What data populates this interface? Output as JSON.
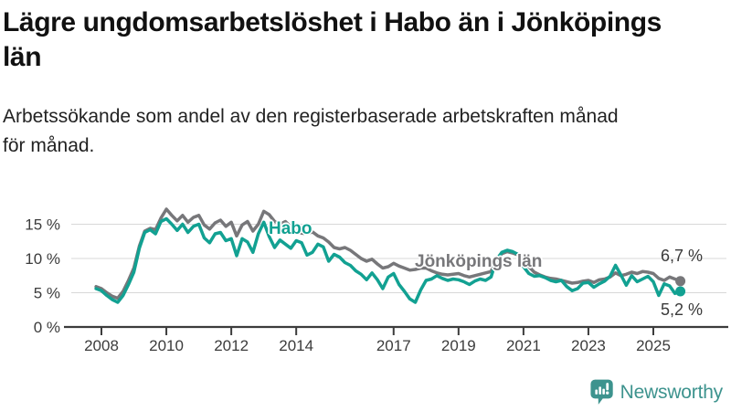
{
  "header": {
    "title_line1": "Lägre ungdomsarbetslöshet i Habo än i Jönköpings",
    "title_line2": "län",
    "subtitle_line1": "Arbetssökande som andel av den registerbaserade arbetskraften månad",
    "subtitle_line2": "för månad."
  },
  "chart_data": {
    "type": "line",
    "title": "Lägre ungdomsarbetslöshet i Habo än i Jönköpings län",
    "subtitle": "Arbetssökande som andel av den registerbaserade arbetskraften månad för månad.",
    "xlabel": "",
    "ylabel": "",
    "x_unit": "year",
    "x0": 2007.8333,
    "dx": 0.16667,
    "xlim": [
      2007.8,
      2026.3
    ],
    "ylim": [
      0,
      18
    ],
    "grid": true,
    "legend_position": "inline-labels",
    "x_ticks": [
      2008,
      2010,
      2012,
      2014,
      2017,
      2019,
      2021,
      2023,
      2025
    ],
    "y_tick_values": [
      0,
      5,
      10,
      15
    ],
    "y_tick_labels": [
      "0 %",
      "5 %",
      "10 %",
      "15 %"
    ],
    "series": [
      {
        "name": "Jönköpings län",
        "color": "#77777a",
        "end_value": 6.7,
        "end_label": "6,7 %",
        "values": [
          5.9,
          5.6,
          5.0,
          4.5,
          4.2,
          5.2,
          6.8,
          8.6,
          11.8,
          14.0,
          14.4,
          14.2,
          15.9,
          17.2,
          16.3,
          15.5,
          16.3,
          15.3,
          16.0,
          16.3,
          14.9,
          14.3,
          15.2,
          15.6,
          14.7,
          15.3,
          13.3,
          14.9,
          15.4,
          14.0,
          15.0,
          16.9,
          16.4,
          15.4,
          15.0,
          15.4,
          14.6,
          14.1,
          13.7,
          13.6,
          13.9,
          13.3,
          13.0,
          12.4,
          11.6,
          11.4,
          11.6,
          11.2,
          10.6,
          10.0,
          9.6,
          9.9,
          9.2,
          8.6,
          8.8,
          9.3,
          8.9,
          8.6,
          8.3,
          8.4,
          8.6,
          8.6,
          8.2,
          7.9,
          7.7,
          7.6,
          7.7,
          7.8,
          7.5,
          7.3,
          7.5,
          7.7,
          7.9,
          8.1,
          10.0,
          10.7,
          11.0,
          10.8,
          10.5,
          9.8,
          8.8,
          8.0,
          7.6,
          7.3,
          7.1,
          7.0,
          6.8,
          6.6,
          6.4,
          6.5,
          6.7,
          6.8,
          6.5,
          6.9,
          7.0,
          7.3,
          7.9,
          7.5,
          7.7,
          8.0,
          7.8,
          8.1,
          8.0,
          7.8,
          7.1,
          6.8,
          7.3,
          7.0,
          6.7
        ]
      },
      {
        "name": "Habo",
        "color": "#12a192",
        "end_value": 5.2,
        "end_label": "5,2 %",
        "values": [
          5.6,
          5.3,
          4.6,
          4.0,
          3.6,
          4.6,
          6.2,
          8.0,
          11.5,
          13.8,
          14.2,
          13.6,
          15.4,
          15.8,
          15.0,
          14.1,
          15.0,
          13.8,
          14.7,
          15.0,
          13.0,
          12.3,
          13.6,
          13.8,
          12.6,
          12.9,
          10.4,
          12.9,
          12.4,
          10.9,
          13.6,
          15.3,
          13.2,
          11.6,
          12.7,
          12.1,
          11.5,
          12.6,
          12.3,
          10.5,
          10.9,
          12.1,
          11.7,
          9.6,
          10.6,
          10.2,
          9.4,
          9.0,
          8.2,
          7.7,
          6.9,
          7.9,
          6.9,
          5.6,
          7.3,
          7.8,
          6.2,
          5.2,
          4.1,
          3.6,
          5.4,
          6.8,
          7.0,
          7.5,
          7.1,
          6.8,
          7.0,
          6.9,
          6.6,
          6.2,
          6.7,
          7.0,
          6.8,
          7.3,
          9.8,
          10.9,
          11.2,
          11.0,
          10.6,
          8.8,
          7.8,
          7.4,
          7.5,
          7.2,
          6.8,
          6.6,
          6.8,
          5.9,
          5.3,
          5.6,
          6.4,
          6.5,
          5.8,
          6.3,
          6.7,
          7.4,
          9.0,
          7.6,
          6.1,
          7.5,
          6.6,
          7.0,
          7.4,
          6.6,
          4.6,
          6.3,
          6.0,
          4.9,
          5.2
        ]
      }
    ],
    "axis_color": "#3c3c3c",
    "gridline_color": "#d8d8d8"
  },
  "branding": {
    "name": "Newsworthy",
    "color": "#3d938e"
  }
}
